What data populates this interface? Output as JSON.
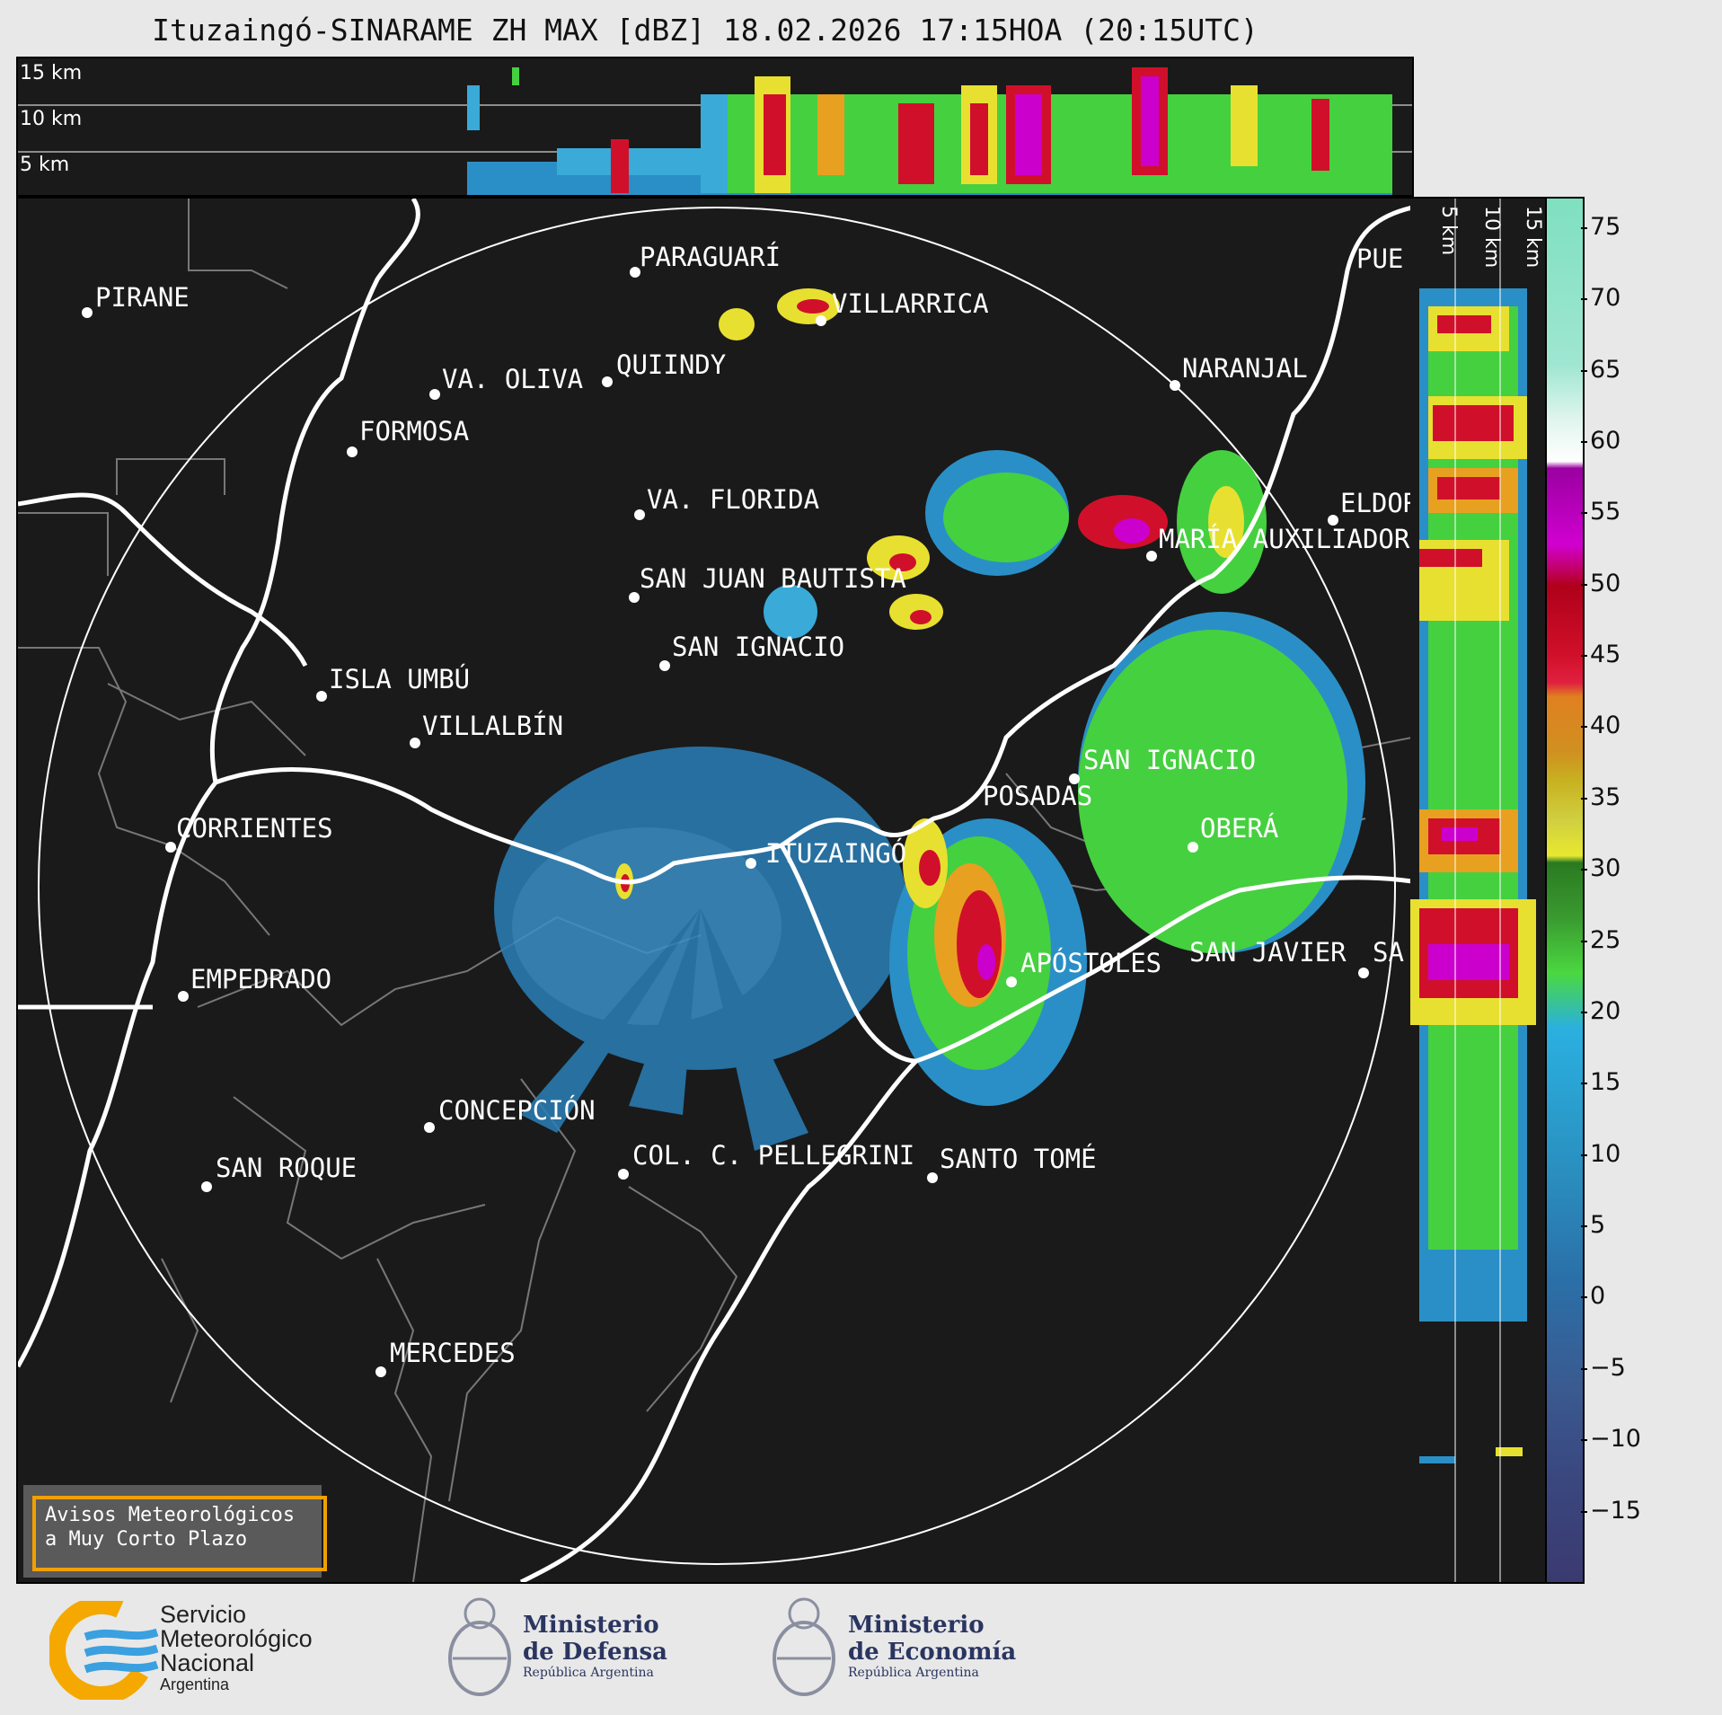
{
  "title": "Ituzaingó-SINARAME ZH MAX [dBZ] 18.02.2026 17:15HOA (20:15UTC)",
  "top_panel": {
    "heights": [
      "15 km",
      "10 km",
      "5 km"
    ]
  },
  "side_panel": {
    "heights": [
      "5 km",
      "10 km",
      "15 km"
    ]
  },
  "colorbar": {
    "ticks": [
      "75",
      "70",
      "65",
      "60",
      "55",
      "50",
      "45",
      "40",
      "35",
      "30",
      "25",
      "20",
      "15",
      "10",
      "5",
      "0",
      "−5",
      "−10",
      "−15"
    ],
    "range": [
      -20,
      77
    ],
    "unit": "dBZ"
  },
  "cities": [
    {
      "name": "PARAGUARÍ"
    },
    {
      "name": "VILLARRICA"
    },
    {
      "name": "PIRANE"
    },
    {
      "name": "QUIINDY"
    },
    {
      "name": "VA. OLIVA"
    },
    {
      "name": "NARANJAL"
    },
    {
      "name": "FORMOSA"
    },
    {
      "name": "VA. FLORIDA"
    },
    {
      "name": "ELDOR"
    },
    {
      "name": "MARÍA AUXILIADOR"
    },
    {
      "name": "SAN JUAN BAUTISTA"
    },
    {
      "name": "SAN IGNACIO"
    },
    {
      "name": "ISLA UMBÚ"
    },
    {
      "name": "VILLALBÍN"
    },
    {
      "name": "SAN IGNACIO"
    },
    {
      "name": "POSADAS"
    },
    {
      "name": "CORRIENTES"
    },
    {
      "name": "OBERÁ"
    },
    {
      "name": "ITUZAINGÓ"
    },
    {
      "name": "APÓSTOLES"
    },
    {
      "name": "SAN JAVIER"
    },
    {
      "name": "SA"
    },
    {
      "name": "EMPEDRADO"
    },
    {
      "name": "CONCEPCIÓN"
    },
    {
      "name": "COL. C. PELLEGRINI"
    },
    {
      "name": "SANTO TOMÉ"
    },
    {
      "name": "SAN ROQUE"
    },
    {
      "name": "MERCEDES"
    },
    {
      "name": "PUE"
    }
  ],
  "warning_box": {
    "line1": "Avisos Meteorológicos",
    "line2": "a Muy Corto Plazo"
  },
  "logos": {
    "smn": {
      "line1": "Servicio",
      "line2": "Meteorológico",
      "line3": "Nacional",
      "line4": "Argentina"
    },
    "defensa": {
      "line1": "Ministerio",
      "line2": "de Defensa",
      "line3": "República Argentina"
    },
    "economia": {
      "line1": "Ministerio",
      "line2": "de Economía",
      "line3": "República Argentina"
    }
  },
  "colors": {
    "background": "#1a1a1a",
    "border": "#ffffff",
    "warning": "#f0a000"
  }
}
